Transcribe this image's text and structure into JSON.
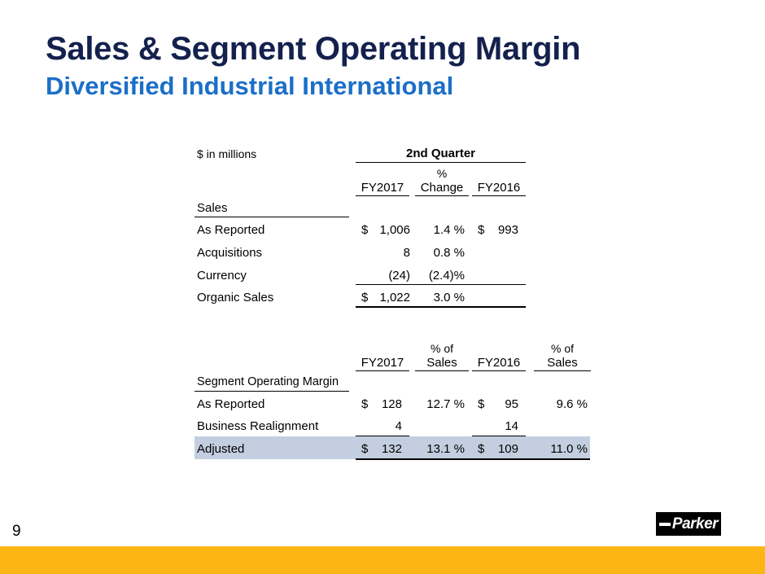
{
  "slide": {
    "title": "Sales & Segment Operating Margin",
    "subtitle": "Diversified Industrial International",
    "page_number": "9",
    "logo_text": "Parker",
    "accent_color": "#fbb616",
    "title_color": "#14214d",
    "subtitle_color": "#1b6fc8"
  },
  "sales_table": {
    "units_label": "$ in millions",
    "period_header": "2nd Quarter",
    "pct_label_top": "%",
    "pct_label_bottom": "Change",
    "col1": "FY2017",
    "col3": "FY2016",
    "section_label": "Sales",
    "rows": [
      {
        "label": "As Reported",
        "cur": "$",
        "fy17": "1,006",
        "pct": "1.4 %",
        "cur16": "$",
        "fy16": "993"
      },
      {
        "label": "Acquisitions",
        "cur": "",
        "fy17": "8",
        "pct": "0.8 %",
        "cur16": "",
        "fy16": ""
      },
      {
        "label": "Currency",
        "cur": "",
        "fy17": "(24)",
        "pct": "(2.4)%",
        "cur16": "",
        "fy16": ""
      },
      {
        "label": "Organic Sales",
        "cur": "$",
        "fy17": "1,022",
        "pct": "3.0 %",
        "cur16": "",
        "fy16": ""
      }
    ]
  },
  "margin_table": {
    "col1": "FY2017",
    "col2_top": "% of",
    "col2_bottom": "Sales",
    "col3": "FY2016",
    "col4_top": "% of",
    "col4_bottom": "Sales",
    "section_label": "Segment Operating Margin",
    "rows": [
      {
        "label": "As Reported",
        "cur": "$",
        "fy17": "128",
        "pct17": "12.7 %",
        "cur16": "$",
        "fy16": "95",
        "pct16": "9.6 %"
      },
      {
        "label": "Business Realignment",
        "cur": "",
        "fy17": "4",
        "pct17": "",
        "cur16": "",
        "fy16": "14",
        "pct16": ""
      },
      {
        "label": "Adjusted",
        "cur": "$",
        "fy17": "132",
        "pct17": "13.1 %",
        "cur16": "$",
        "fy16": "109",
        "pct16": "11.0 %"
      }
    ]
  }
}
